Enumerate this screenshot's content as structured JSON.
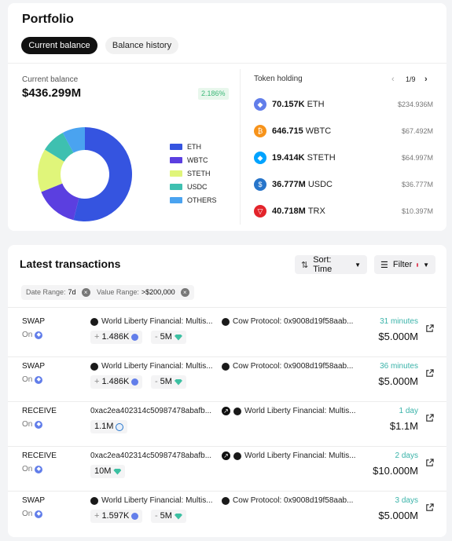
{
  "portfolio": {
    "title": "Portfolio",
    "tabs": [
      {
        "label": "Current balance",
        "active": true
      },
      {
        "label": "Balance history",
        "active": false
      }
    ],
    "balance_label": "Current balance",
    "balance_value": "$436.299M",
    "change_badge": "2.186%",
    "accent_green": "#3cb878"
  },
  "chart_data": {
    "type": "pie",
    "categories": [
      "ETH",
      "WBTC",
      "STETH",
      "USDC",
      "OTHERS"
    ],
    "values": [
      53.9,
      15.0,
      14.9,
      8.4,
      7.8
    ],
    "colors": [
      "#3554e0",
      "#5b3fe0",
      "#e0f57a",
      "#3ec0b0",
      "#4aa3f0"
    ],
    "donut": true,
    "legend_position": "right"
  },
  "tokens": {
    "title": "Token holding",
    "page": "1/9",
    "items": [
      {
        "amount": "70.157K",
        "symbol": "ETH",
        "value": "$234.936M",
        "icon": "eth-icon",
        "color": "#627eea"
      },
      {
        "amount": "646.715",
        "symbol": "WBTC",
        "value": "$67.492M",
        "icon": "wbtc-icon",
        "color": "#f7931a"
      },
      {
        "amount": "19.414K",
        "symbol": "STETH",
        "value": "$64.997M",
        "icon": "steth-icon",
        "color": "#00a3ff"
      },
      {
        "amount": "36.777M",
        "symbol": "USDC",
        "value": "$36.777M",
        "icon": "usdc-icon",
        "color": "#2775ca"
      },
      {
        "amount": "40.718M",
        "symbol": "TRX",
        "value": "$10.397M",
        "icon": "trx-icon",
        "color": "#e3242b"
      }
    ]
  },
  "transactions": {
    "title": "Latest transactions",
    "sort_label": "Sort: Time",
    "filter_label": "Filter",
    "filters": [
      {
        "key": "Date Range:",
        "value": "7d"
      },
      {
        "key": "Value Range:",
        "value": ">$200,000"
      }
    ],
    "on_label": "On",
    "rows": [
      {
        "type": "SWAP",
        "from": "World Liberty Financial: Multis...",
        "to": "Cow Protocol: 0x9008d19f58aab...",
        "chip1_sign": "+",
        "chip1": "1.486K",
        "chip2_sign": "-",
        "chip2": "5M",
        "time": "31 minutes",
        "amount": "$5.000M"
      },
      {
        "type": "SWAP",
        "from": "World Liberty Financial: Multis...",
        "to": "Cow Protocol: 0x9008d19f58aab...",
        "chip1_sign": "+",
        "chip1": "1.486K",
        "chip2_sign": "-",
        "chip2": "5M",
        "time": "36 minutes",
        "amount": "$5.000M"
      },
      {
        "type": "RECEIVE",
        "from": "0xac2ea402314c50987478abafb...",
        "to": "World Liberty Financial: Multis...",
        "chip1": "1.1M",
        "time": "1 day",
        "amount": "$1.1M"
      },
      {
        "type": "RECEIVE",
        "from": "0xac2ea402314c50987478abafb...",
        "to": "World Liberty Financial: Multis...",
        "chip1": "10M",
        "time": "2 days",
        "amount": "$10.000M"
      },
      {
        "type": "SWAP",
        "from": "World Liberty Financial: Multis...",
        "to": "Cow Protocol: 0x9008d19f58aab...",
        "chip1_sign": "+",
        "chip1": "1.597K",
        "chip2_sign": "-",
        "chip2": "5M",
        "time": "3 days",
        "amount": "$5.000M"
      }
    ]
  }
}
